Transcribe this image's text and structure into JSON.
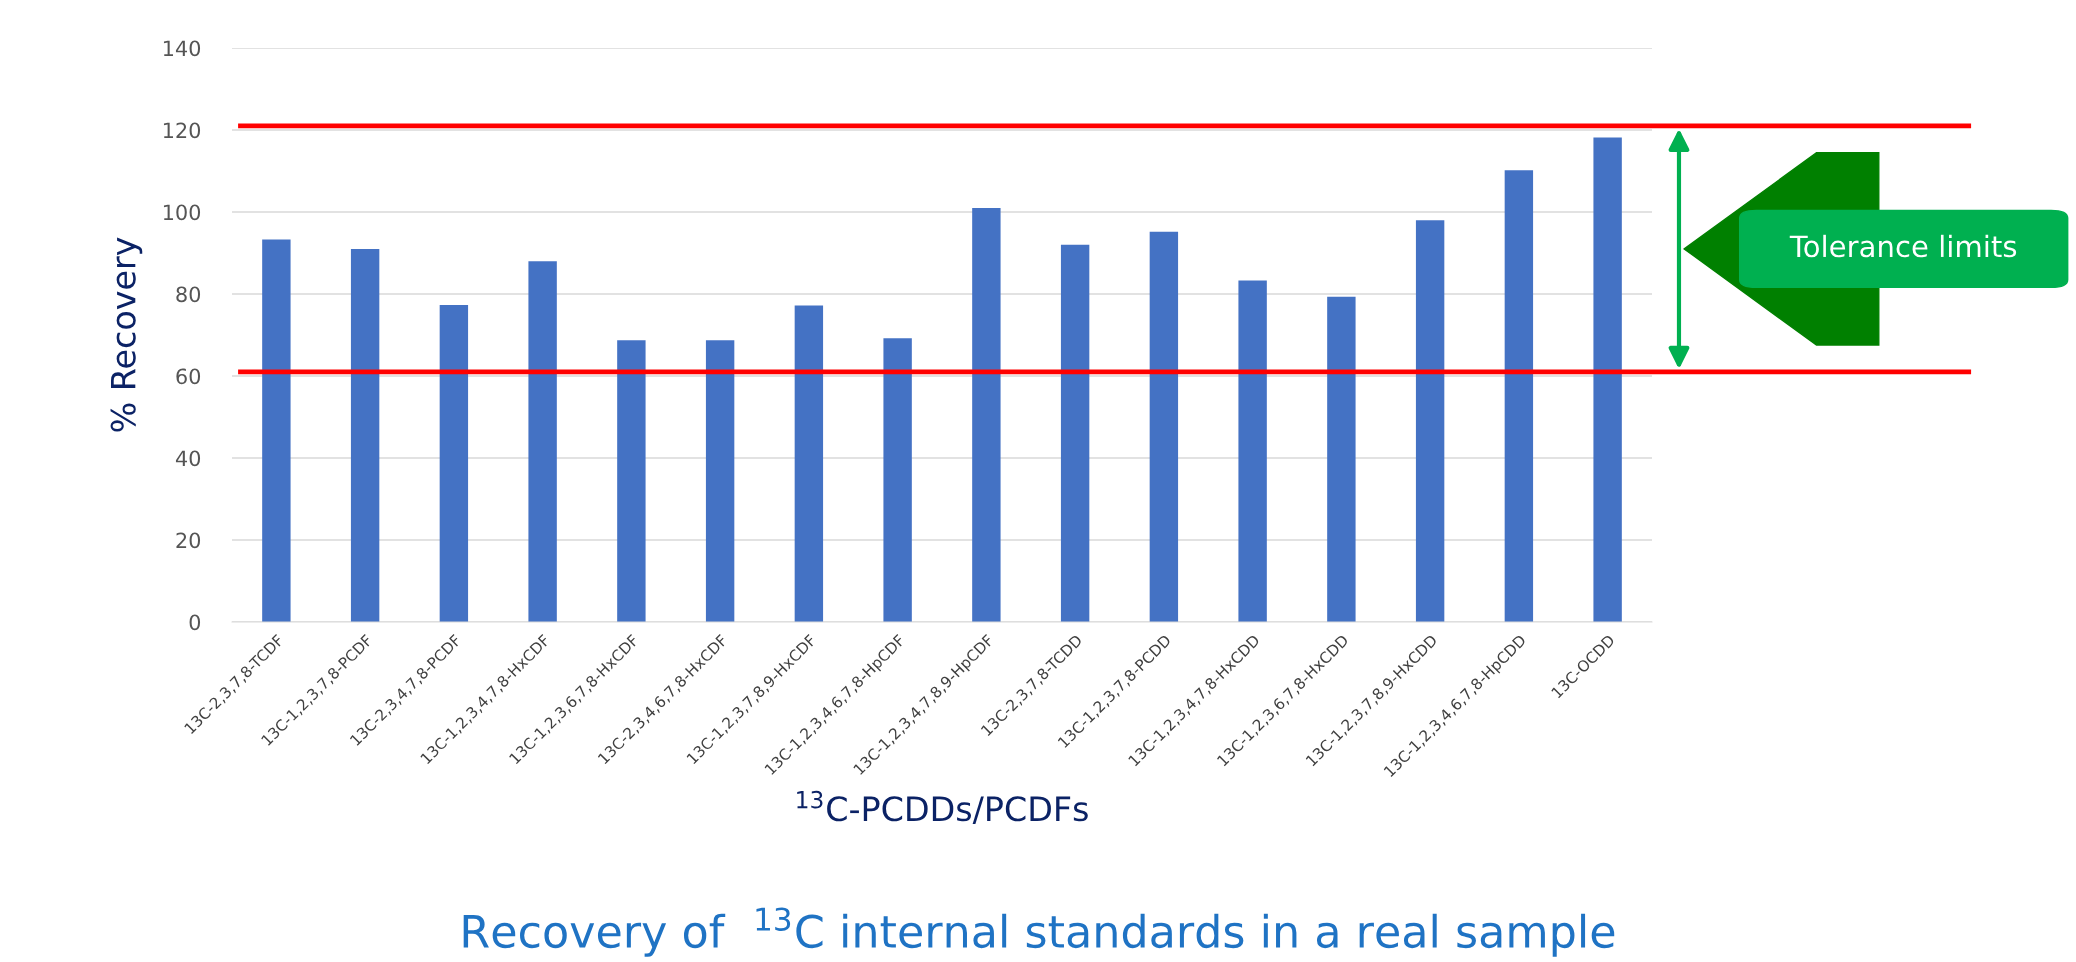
{
  "chart_data": {
    "type": "bar",
    "title": "Recovery of  $^{13}$C internal standards in a real sample",
    "xlabel": "$^{13}$C-PCDDs/PCDFs",
    "ylabel": "% Recovery",
    "categories": [
      "13C-2,3,7,8-TCDF",
      "13C-1,2,3,7,8-PCDF",
      "13C-2,3,4,7,8-PCDF",
      "13C-1,2,3,4,7,8-HxCDF",
      "13C-1,2,3,6,7,8-HxCDF",
      "13C-2,3,4,6,7,8-HxCDF",
      "13C-1,2,3,7,8,9-HxCDF",
      "13C-1,2,3,4,6,7,8-HpCDF",
      "13C-1,2,3,4,7,8,9-HpCDF",
      "13C-2,3,7,8-TCDD",
      "13C-1,2,3,7,8-PCDD",
      "13C-1,2,3,4,7,8-HxCDD",
      "13C-1,2,3,6,7,8-HxCDD",
      "13C-1,2,3,7,8,9-HxCDD",
      "13C-1,2,3,4,6,7,8-HpCDD",
      "13C-OCDD"
    ],
    "values": [
      93.3,
      91,
      77.3,
      88,
      68.7,
      68.7,
      77.2,
      69.2,
      101,
      92,
      95.2,
      83.3,
      79.3,
      98,
      110.2,
      118.2
    ],
    "color": "#4472c4",
    "ylim": [
      0,
      140
    ],
    "yticks": [
      0,
      20,
      40,
      60,
      80,
      100,
      120,
      140
    ],
    "grid": "y",
    "ref_lines": [
      {
        "axis": "y",
        "value": 121,
        "label": null,
        "color": "#ff0000"
      },
      {
        "axis": "y",
        "value": 61,
        "label": null,
        "color": "#ff0000"
      }
    ],
    "annotations": [
      "Tolerance limits"
    ]
  }
}
